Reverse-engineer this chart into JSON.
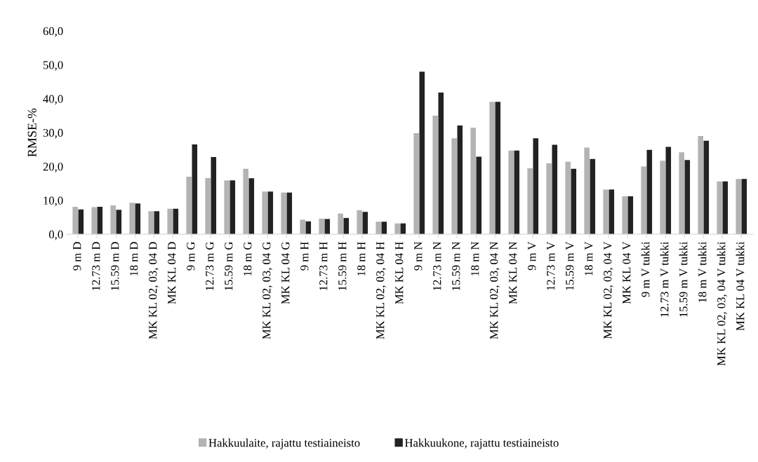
{
  "chart_data": {
    "type": "bar",
    "ylabel": "RMSE-%",
    "categories": [
      "9 m D",
      "12.73 m D",
      "15.59 m D",
      "18 m D",
      "MK KL 02, 03, 04 D",
      "MK KL 04 D",
      "9 m G",
      "12.73 m G",
      "15.59 m G",
      "18 m G",
      "MK KL 02, 03, 04 G",
      "MK KL 04 G",
      "9 m H",
      "12.73 m H",
      "15.59 m H",
      "18 m H",
      "MK KL 02, 03, 04 H",
      "MK KL 04 H",
      "9 m N",
      "12.73 m N",
      "15.59 m N",
      "18 m N",
      "MK KL 02, 03, 04 N",
      "MK KL 04 N",
      "9 m V",
      "12.73 m V",
      "15.59 m V",
      "18 m V",
      "MK KL 02, 03, 04 V",
      "MK KL 04 V",
      "9 m V tukki",
      "12.73 m V tukki",
      "15.59 m V tukki",
      "18 m V tukki",
      "MK KL 02, 03, 04 V tukki",
      "MK KL 04 V tukki"
    ],
    "series": [
      {
        "name": "Hakkuulaite, rajattu testiaineisto",
        "color": "#b3b3b3",
        "values": [
          8.1,
          8.0,
          8.5,
          9.3,
          6.8,
          7.5,
          17.0,
          16.6,
          15.9,
          19.3,
          12.6,
          12.3,
          4.3,
          4.6,
          6.1,
          7.1,
          3.7,
          3.2,
          29.8,
          35.0,
          28.3,
          31.4,
          39.1,
          24.7,
          19.5,
          20.9,
          21.4,
          25.6,
          13.2,
          11.2,
          20.0,
          21.7,
          24.2,
          29.0,
          15.6,
          16.3
        ]
      },
      {
        "name": "Hakkuukone, rajattu testiaineisto",
        "color": "#222222",
        "values": [
          7.3,
          8.1,
          7.2,
          9.1,
          6.8,
          7.5,
          26.5,
          22.8,
          15.9,
          16.5,
          12.6,
          12.3,
          3.8,
          4.5,
          4.8,
          6.6,
          3.7,
          3.2,
          48.0,
          41.8,
          32.1,
          22.9,
          39.1,
          24.7,
          28.3,
          26.4,
          19.3,
          22.2,
          13.2,
          11.2,
          24.9,
          25.8,
          21.9,
          27.6,
          15.6,
          16.3
        ]
      }
    ],
    "ylim": [
      0,
      60
    ],
    "yticks": [
      {
        "value": 0,
        "label": "0,0"
      },
      {
        "value": 10,
        "label": "10,0"
      },
      {
        "value": 20,
        "label": "20,0"
      },
      {
        "value": 30,
        "label": "30,0"
      },
      {
        "value": 40,
        "label": "40,0"
      },
      {
        "value": 50,
        "label": "50,0"
      },
      {
        "value": 60,
        "label": "60,0"
      }
    ],
    "grid": false,
    "legend": "bottom"
  }
}
